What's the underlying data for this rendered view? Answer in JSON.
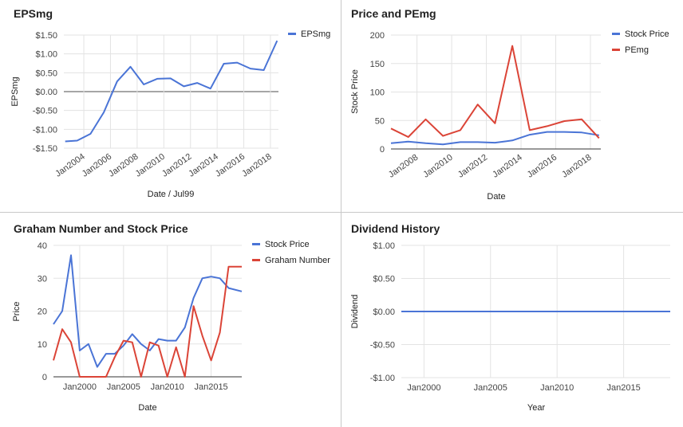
{
  "charts": [
    {
      "type": "line",
      "title": "EPSmg",
      "xlabel": "Date / Jul99",
      "ylabel": "EPSmg",
      "ylim": [
        -1.5,
        1.5
      ],
      "yticks": [
        "$1.50",
        "$1.00",
        "$0.50",
        "$0.00",
        "-$0.50",
        "-$1.00",
        "-$1.50"
      ],
      "ytick_values": [
        1.5,
        1.0,
        0.5,
        0.0,
        -0.5,
        -1.0,
        -1.5
      ],
      "xlim": [
        2002.5,
        2018.6
      ],
      "xticks": [
        "Jan2004",
        "Jan2006",
        "Jan2008",
        "Jan2010",
        "Jan2012",
        "Jan2014",
        "Jan2016",
        "Jan2018"
      ],
      "xtick_values": [
        2004,
        2006,
        2008,
        2010,
        2012,
        2014,
        2016,
        2018
      ],
      "xtick_rotate": true,
      "grid": true,
      "zero_line": true,
      "legend": "top-right",
      "series": [
        {
          "name": "EPSmg",
          "color": "#4a74d6",
          "x": [
            2002.6,
            2003.5,
            2004.5,
            2005.5,
            2006.5,
            2007.5,
            2008.5,
            2009.5,
            2010.5,
            2011.5,
            2012.5,
            2013.5,
            2014.5,
            2015.5,
            2016.5,
            2017.5,
            2018.5
          ],
          "y": [
            -1.32,
            -1.3,
            -1.12,
            -0.55,
            0.27,
            0.66,
            0.19,
            0.34,
            0.35,
            0.14,
            0.23,
            0.08,
            0.74,
            0.77,
            0.61,
            0.57,
            1.35
          ]
        }
      ]
    },
    {
      "type": "line",
      "title": "Price and PEmg",
      "xlabel": "Date",
      "ylabel": "Stock Price",
      "ylim": [
        0,
        200
      ],
      "yticks": [
        "200",
        "150",
        "100",
        "50",
        "0"
      ],
      "ytick_values": [
        200,
        150,
        100,
        50,
        0
      ],
      "xlim": [
        2006.5,
        2018.6
      ],
      "xticks": [
        "Jan2008",
        "Jan2010",
        "Jan2012",
        "Jan2014",
        "Jan2016",
        "Jan2018"
      ],
      "xtick_values": [
        2008,
        2010,
        2012,
        2014,
        2016,
        2018
      ],
      "xtick_rotate": true,
      "grid": true,
      "zero_line": false,
      "legend": "top-right",
      "series": [
        {
          "name": "Stock Price",
          "color": "#4a74d6",
          "x": [
            2006.5,
            2007.5,
            2008.5,
            2009.5,
            2010.5,
            2011.5,
            2012.5,
            2013.5,
            2014.5,
            2015.5,
            2016.5,
            2017.5,
            2018.5
          ],
          "y": [
            10,
            13,
            10,
            8,
            12,
            12,
            11,
            15,
            25,
            30,
            30,
            29,
            24
          ]
        },
        {
          "name": "PEmg",
          "color": "#db4437",
          "x": [
            2006.5,
            2007.5,
            2008.5,
            2009.5,
            2010.5,
            2011.5,
            2012.5,
            2013.5,
            2014.5,
            2015.5,
            2016.5,
            2017.5,
            2018.5
          ],
          "y": [
            36,
            21,
            52,
            23,
            33,
            78,
            45,
            181,
            33,
            40,
            49,
            52,
            19
          ]
        }
      ]
    },
    {
      "type": "line",
      "title": "Graham Number and Stock Price",
      "xlabel": "Date",
      "ylabel": "Price",
      "ylim": [
        0,
        40
      ],
      "yticks": [
        "40",
        "30",
        "20",
        "10",
        "0"
      ],
      "ytick_values": [
        40,
        30,
        20,
        10,
        0
      ],
      "xlim": [
        1997,
        2018.5
      ],
      "xticks": [
        "Jan2000",
        "Jan2005",
        "Jan2010",
        "Jan2015"
      ],
      "xtick_values": [
        2000,
        2005,
        2010,
        2015
      ],
      "xtick_rotate": false,
      "grid": true,
      "zero_line": false,
      "legend": "top-right",
      "series": [
        {
          "name": "Stock Price",
          "color": "#4a74d6",
          "x": [
            1997,
            1998,
            1999,
            2000,
            2001,
            2002,
            2003,
            2004,
            2005,
            2006,
            2007,
            2008,
            2009,
            2010,
            2011,
            2012,
            2013,
            2014,
            2015,
            2016,
            2017,
            2018.5
          ],
          "y": [
            16,
            20,
            37,
            8,
            10,
            3,
            7,
            7,
            9.5,
            13,
            10,
            8,
            11.5,
            11,
            11,
            15,
            24,
            30,
            30.5,
            30,
            27,
            26
          ]
        },
        {
          "name": "Graham Number",
          "color": "#db4437",
          "x": [
            1997,
            1998,
            1999,
            2000,
            2001,
            2002,
            2003,
            2004,
            2005,
            2006,
            2007,
            2008,
            2009,
            2010,
            2011,
            2012,
            2013,
            2014,
            2015,
            2016,
            2017,
            2018.5
          ],
          "y": [
            5,
            14.5,
            10.5,
            0,
            0,
            0,
            0,
            6,
            11,
            10.5,
            0,
            10.5,
            9.5,
            0,
            9,
            0,
            21.5,
            12.5,
            5,
            13.5,
            33.5,
            33.5
          ]
        }
      ]
    },
    {
      "type": "line",
      "title": "Dividend History",
      "xlabel": "Year",
      "ylabel": "Dividend",
      "ylim": [
        -1.0,
        1.0
      ],
      "yticks": [
        "$1.00",
        "$0.50",
        "$0.00",
        "-$0.50",
        "-$1.00"
      ],
      "ytick_values": [
        1.0,
        0.5,
        0.0,
        -0.5,
        -1.0
      ],
      "xlim": [
        1998.3,
        2018.5
      ],
      "xticks": [
        "Jan2000",
        "Jan2005",
        "Jan2010",
        "Jan2015"
      ],
      "xtick_values": [
        2000,
        2005,
        2010,
        2015
      ],
      "xtick_rotate": false,
      "grid": true,
      "zero_line": false,
      "legend": "none",
      "series": [
        {
          "name": "",
          "color": "#4a74d6",
          "x": [
            1998.3,
            2018.5
          ],
          "y": [
            0,
            0
          ]
        }
      ]
    }
  ]
}
